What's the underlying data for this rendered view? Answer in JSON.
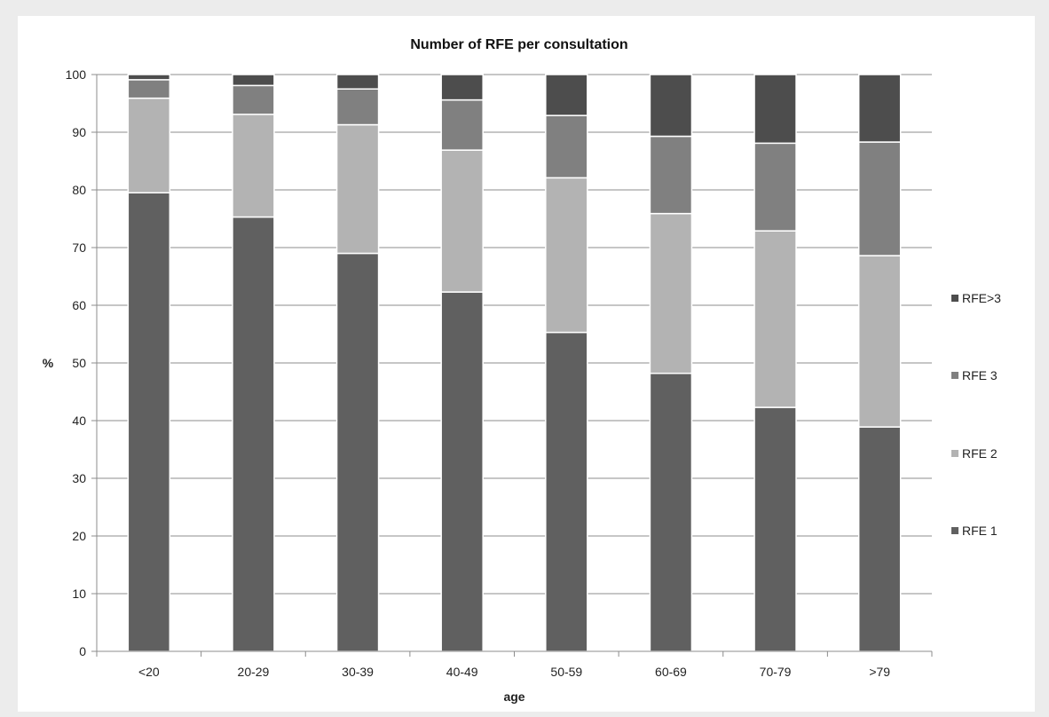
{
  "chart_data": {
    "type": "bar",
    "stacked": true,
    "title": "Number of RFE per consultation",
    "xlabel": "age",
    "ylabel": "%",
    "ylim": [
      0,
      100
    ],
    "yticks": [
      0,
      10,
      20,
      30,
      40,
      50,
      60,
      70,
      80,
      90,
      100
    ],
    "categories": [
      "<20",
      "20-29",
      "30-39",
      "40-49",
      "50-59",
      "60-69",
      "70-79",
      ">79"
    ],
    "grid": true,
    "legend_position": "right",
    "series": [
      {
        "name": "RFE 1",
        "color": "#606060",
        "values": [
          79.5,
          75.3,
          69.0,
          62.3,
          55.3,
          48.2,
          42.3,
          38.9
        ]
      },
      {
        "name": "RFE 2",
        "color": "#b3b3b3",
        "values": [
          16.4,
          17.8,
          22.3,
          24.6,
          26.8,
          27.7,
          30.6,
          29.7
        ]
      },
      {
        "name": "RFE 3",
        "color": "#808080",
        "values": [
          3.2,
          5.0,
          6.2,
          8.7,
          10.8,
          13.4,
          15.2,
          19.7
        ]
      },
      {
        "name": "RFE>3",
        "color": "#4d4d4d",
        "values": [
          0.9,
          1.9,
          2.5,
          4.4,
          7.1,
          10.7,
          11.9,
          11.7
        ]
      }
    ]
  }
}
